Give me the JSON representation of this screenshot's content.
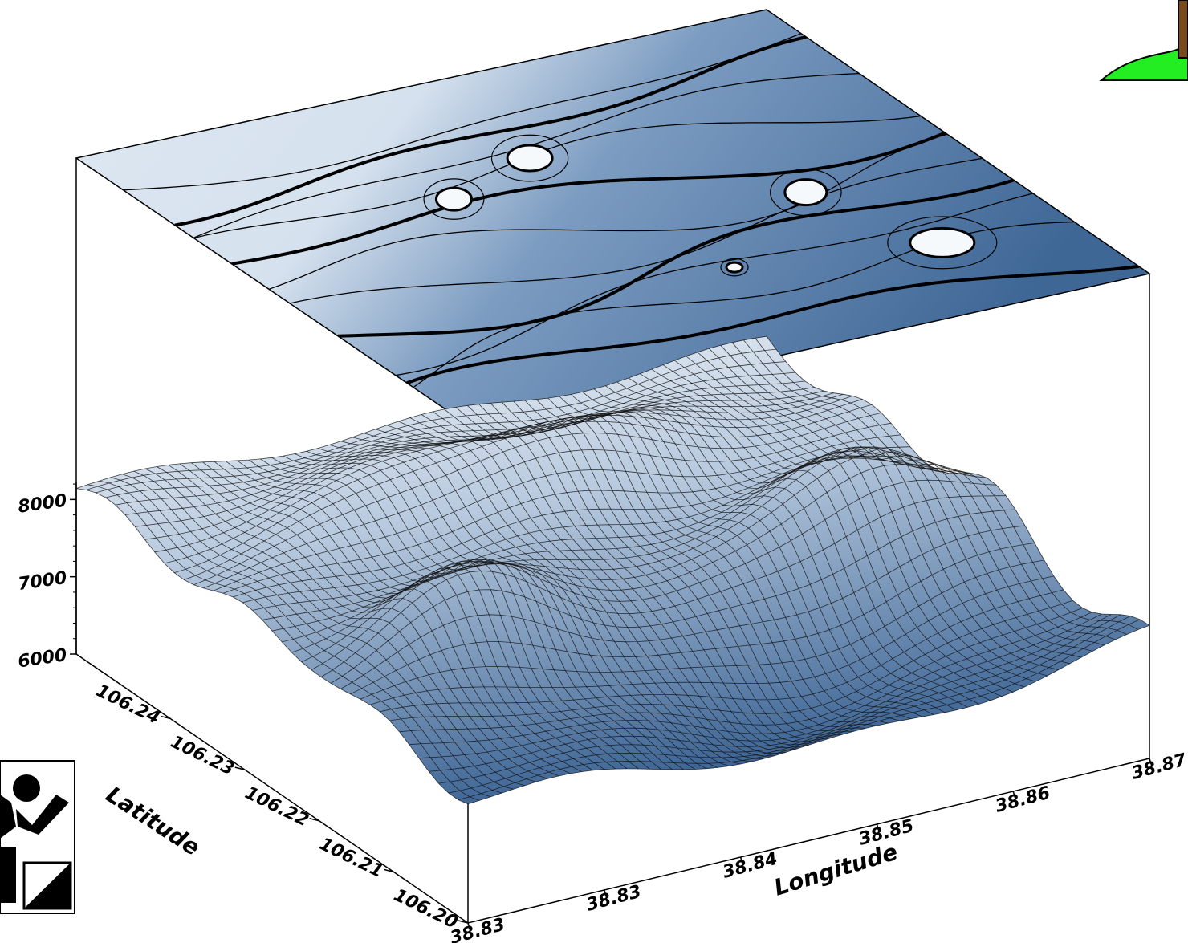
{
  "chart_data": {
    "type": "surface",
    "title": "",
    "xlabel": "Longitude",
    "ylabel": "Latitude",
    "zlabel": "",
    "x_ticks": [
      "38.83",
      "38.83",
      "38.84",
      "38.85",
      "38.86",
      "38.87"
    ],
    "y_ticks": [
      "106.20",
      "106.21",
      "106.22",
      "106.23",
      "106.24"
    ],
    "z_ticks": [
      "6000",
      "7000",
      "8000"
    ],
    "zlim": [
      6000,
      8500
    ],
    "grid": true,
    "legend": "none",
    "top_contour_map": true,
    "colors": {
      "low": "#3f6796",
      "high": "#eef3f9",
      "contour_line": "#000000",
      "mesh_line": "#111111",
      "frame": "#000000",
      "accent_green": "#22ee22"
    }
  },
  "logos": {
    "left": "figure-with-mesh-logo",
    "right": "green-hill-logo"
  }
}
